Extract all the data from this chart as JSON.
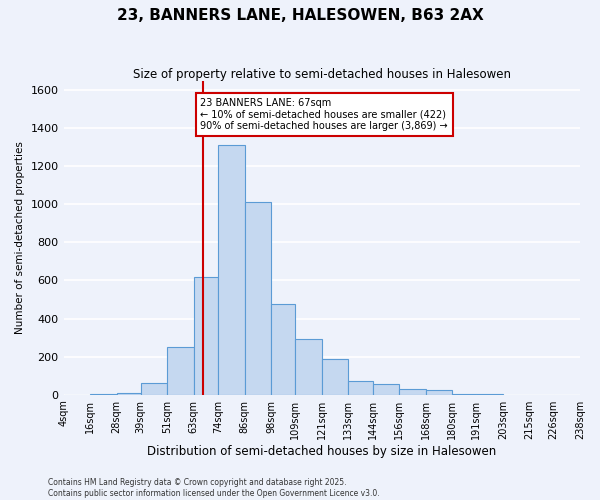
{
  "title": "23, BANNERS LANE, HALESOWEN, B63 2AX",
  "subtitle": "Size of property relative to semi-detached houses in Halesowen",
  "xlabel": "Distribution of semi-detached houses by size in Halesowen",
  "ylabel": "Number of semi-detached properties",
  "footer1": "Contains HM Land Registry data © Crown copyright and database right 2025.",
  "footer2": "Contains public sector information licensed under the Open Government Licence v3.0.",
  "property_label": "23 BANNERS LANE: 67sqm",
  "smaller_text": "← 10% of semi-detached houses are smaller (422)",
  "larger_text": "90% of semi-detached houses are larger (3,869) →",
  "bin_labels": [
    "4sqm",
    "16sqm",
    "28sqm",
    "39sqm",
    "51sqm",
    "63sqm",
    "74sqm",
    "86sqm",
    "98sqm",
    "109sqm",
    "121sqm",
    "133sqm",
    "144sqm",
    "156sqm",
    "168sqm",
    "180sqm",
    "191sqm",
    "203sqm",
    "215sqm",
    "226sqm",
    "238sqm"
  ],
  "bin_edges": [
    4,
    16,
    28,
    39,
    51,
    63,
    74,
    86,
    98,
    109,
    121,
    133,
    144,
    156,
    168,
    180,
    191,
    203,
    215,
    226,
    238
  ],
  "bar_heights": [
    0,
    5,
    10,
    60,
    250,
    620,
    1310,
    1010,
    475,
    295,
    185,
    70,
    55,
    30,
    25,
    5,
    2,
    1,
    1,
    0,
    0
  ],
  "bar_color": "#c5d8f0",
  "bar_edge_color": "#5b9bd5",
  "vline_color": "#cc0000",
  "vline_x": 67,
  "ylim": [
    0,
    1650
  ],
  "yticks": [
    0,
    200,
    400,
    600,
    800,
    1000,
    1200,
    1400,
    1600
  ],
  "bg_color": "#eef2fb",
  "grid_color": "#ffffff",
  "ann_edge_color": "#cc0000"
}
